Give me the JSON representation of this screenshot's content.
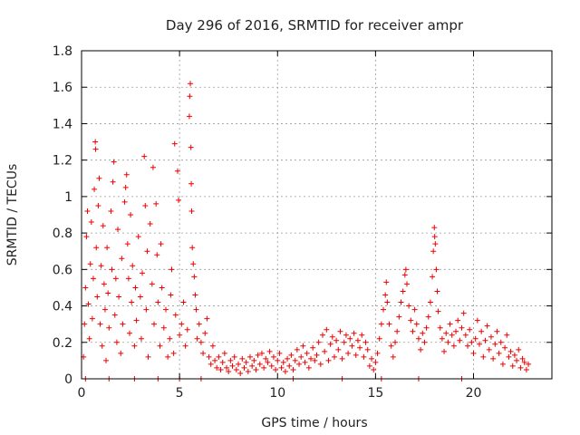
{
  "chart_data": {
    "type": "scatter",
    "title": "Day 296 of 2016, SRMTID for receiver ampr",
    "xlabel": "GPS time / hours",
    "ylabel": "SRMTID / TECUs",
    "xlim": [
      0,
      24
    ],
    "ylim": [
      0,
      1.8
    ],
    "grid": true,
    "marker": "+",
    "color": "#ee0000",
    "x_ticks": [
      0,
      5,
      10,
      15,
      20
    ],
    "x_tick_labels": [
      "0",
      "5",
      "10",
      "15",
      "20"
    ],
    "y_ticks": [
      0,
      0.2,
      0.4,
      0.6,
      0.8,
      1.0,
      1.2,
      1.4,
      1.6,
      1.8
    ],
    "y_tick_labels": [
      "0",
      "0.2",
      "0.4",
      "0.6",
      "0.8",
      "1",
      "1.2",
      "1.4",
      "1.6",
      "1.8"
    ],
    "series": [
      {
        "name": "SRMTID",
        "points": [
          [
            0.1,
            0.12
          ],
          [
            0.15,
            0.3
          ],
          [
            0.2,
            0.5
          ],
          [
            0.25,
            0.78
          ],
          [
            0.3,
            0.92
          ],
          [
            0.35,
            0.41
          ],
          [
            0.4,
            0.22
          ],
          [
            0.45,
            0.63
          ],
          [
            0.5,
            0.86
          ],
          [
            0.55,
            0.33
          ],
          [
            0.6,
            0.55
          ],
          [
            0.65,
            1.04
          ],
          [
            0.7,
            1.3
          ],
          [
            0.72,
            1.26
          ],
          [
            0.75,
            0.72
          ],
          [
            0.8,
            0.45
          ],
          [
            0.85,
            0.95
          ],
          [
            0.9,
            1.1
          ],
          [
            0.95,
            0.3
          ],
          [
            1.0,
            0.62
          ],
          [
            1.05,
            0.18
          ],
          [
            1.1,
            0.84
          ],
          [
            1.15,
            0.52
          ],
          [
            1.2,
            0.38
          ],
          [
            1.25,
            0.1
          ],
          [
            1.3,
            0.72
          ],
          [
            1.35,
            0.47
          ],
          [
            1.4,
            0.28
          ],
          [
            1.5,
            0.92
          ],
          [
            1.55,
            0.6
          ],
          [
            1.6,
            1.08
          ],
          [
            1.65,
            1.19
          ],
          [
            1.7,
            0.35
          ],
          [
            1.75,
            0.55
          ],
          [
            1.8,
            0.2
          ],
          [
            1.85,
            0.82
          ],
          [
            1.9,
            0.45
          ],
          [
            2.0,
            0.14
          ],
          [
            2.05,
            0.66
          ],
          [
            2.1,
            0.3
          ],
          [
            2.2,
            0.97
          ],
          [
            2.25,
            1.05
          ],
          [
            2.3,
            1.12
          ],
          [
            2.35,
            0.74
          ],
          [
            2.4,
            0.55
          ],
          [
            2.45,
            0.25
          ],
          [
            2.5,
            0.9
          ],
          [
            2.55,
            0.42
          ],
          [
            2.6,
            0.62
          ],
          [
            2.7,
            0.18
          ],
          [
            2.75,
            0.5
          ],
          [
            2.8,
            0.32
          ],
          [
            2.9,
            0.78
          ],
          [
            3.0,
            0.45
          ],
          [
            3.05,
            0.22
          ],
          [
            3.1,
            0.58
          ],
          [
            3.2,
            1.22
          ],
          [
            3.25,
            0.95
          ],
          [
            3.3,
            0.38
          ],
          [
            3.35,
            0.7
          ],
          [
            3.4,
            0.12
          ],
          [
            3.5,
            0.85
          ],
          [
            3.6,
            0.52
          ],
          [
            3.65,
            1.16
          ],
          [
            3.7,
            0.3
          ],
          [
            3.8,
            0.96
          ],
          [
            3.85,
            0.68
          ],
          [
            3.9,
            0.42
          ],
          [
            4.0,
            0.18
          ],
          [
            4.05,
            0.74
          ],
          [
            4.1,
            0.5
          ],
          [
            4.2,
            0.28
          ],
          [
            4.3,
            0.38
          ],
          [
            4.4,
            0.12
          ],
          [
            4.5,
            0.22
          ],
          [
            4.55,
            0.46
          ],
          [
            4.6,
            0.6
          ],
          [
            4.7,
            0.14
          ],
          [
            4.75,
            1.29
          ],
          [
            4.8,
            0.35
          ],
          [
            4.9,
            1.14
          ],
          [
            4.95,
            0.98
          ],
          [
            5.0,
            0.24
          ],
          [
            5.1,
            0.3
          ],
          [
            5.2,
            0.42
          ],
          [
            5.3,
            0.18
          ],
          [
            5.4,
            0.27
          ],
          [
            5.5,
            1.44
          ],
          [
            5.52,
            1.55
          ],
          [
            5.55,
            1.62
          ],
          [
            5.58,
            1.27
          ],
          [
            5.6,
            1.07
          ],
          [
            5.62,
            0.92
          ],
          [
            5.65,
            0.72
          ],
          [
            5.7,
            0.63
          ],
          [
            5.75,
            0.56
          ],
          [
            5.8,
            0.46
          ],
          [
            5.85,
            0.38
          ],
          [
            5.9,
            0.22
          ],
          [
            6.0,
            0.3
          ],
          [
            6.1,
            0.2
          ],
          [
            6.2,
            0.14
          ],
          [
            6.3,
            0.25
          ],
          [
            6.4,
            0.33
          ],
          [
            6.5,
            0.12
          ],
          [
            6.6,
            0.08
          ],
          [
            6.7,
            0.18
          ],
          [
            6.8,
            0.1
          ],
          [
            6.9,
            0.06
          ],
          [
            7.0,
            0.12
          ],
          [
            7.1,
            0.05
          ],
          [
            7.2,
            0.09
          ],
          [
            7.3,
            0.14
          ],
          [
            7.4,
            0.06
          ],
          [
            7.5,
            0.04
          ],
          [
            7.6,
            0.1
          ],
          [
            7.7,
            0.07
          ],
          [
            7.8,
            0.12
          ],
          [
            7.9,
            0.05
          ],
          [
            8.0,
            0.08
          ],
          [
            8.1,
            0.03
          ],
          [
            8.2,
            0.11
          ],
          [
            8.3,
            0.06
          ],
          [
            8.4,
            0.09
          ],
          [
            8.5,
            0.04
          ],
          [
            8.6,
            0.12
          ],
          [
            8.7,
            0.07
          ],
          [
            8.8,
            0.1
          ],
          [
            8.9,
            0.05
          ],
          [
            9.0,
            0.13
          ],
          [
            9.1,
            0.08
          ],
          [
            9.2,
            0.14
          ],
          [
            9.3,
            0.06
          ],
          [
            9.4,
            0.11
          ],
          [
            9.5,
            0.09
          ],
          [
            9.6,
            0.15
          ],
          [
            9.7,
            0.07
          ],
          [
            9.8,
            0.12
          ],
          [
            9.9,
            0.05
          ],
          [
            10.0,
            0.1
          ],
          [
            10.1,
            0.14
          ],
          [
            10.2,
            0.06
          ],
          [
            10.3,
            0.09
          ],
          [
            10.4,
            0.04
          ],
          [
            10.5,
            0.11
          ],
          [
            10.6,
            0.07
          ],
          [
            10.7,
            0.13
          ],
          [
            10.8,
            0.05
          ],
          [
            10.9,
            0.1
          ],
          [
            11.0,
            0.16
          ],
          [
            11.1,
            0.08
          ],
          [
            11.2,
            0.12
          ],
          [
            11.3,
            0.18
          ],
          [
            11.4,
            0.09
          ],
          [
            11.5,
            0.14
          ],
          [
            11.6,
            0.06
          ],
          [
            11.7,
            0.11
          ],
          [
            11.8,
            0.17
          ],
          [
            11.9,
            0.1
          ],
          [
            12.0,
            0.13
          ],
          [
            12.1,
            0.2
          ],
          [
            12.2,
            0.08
          ],
          [
            12.3,
            0.24
          ],
          [
            12.4,
            0.15
          ],
          [
            12.5,
            0.27
          ],
          [
            12.6,
            0.1
          ],
          [
            12.7,
            0.19
          ],
          [
            12.8,
            0.23
          ],
          [
            12.9,
            0.12
          ],
          [
            13.0,
            0.21
          ],
          [
            13.1,
            0.16
          ],
          [
            13.2,
            0.26
          ],
          [
            13.3,
            0.11
          ],
          [
            13.4,
            0.2
          ],
          [
            13.5,
            0.24
          ],
          [
            13.6,
            0.14
          ],
          [
            13.7,
            0.22
          ],
          [
            13.8,
            0.18
          ],
          [
            13.9,
            0.25
          ],
          [
            14.0,
            0.13
          ],
          [
            14.1,
            0.21
          ],
          [
            14.2,
            0.17
          ],
          [
            14.3,
            0.24
          ],
          [
            14.4,
            0.12
          ],
          [
            14.5,
            0.2
          ],
          [
            14.6,
            0.16
          ],
          [
            14.7,
            0.07
          ],
          [
            14.8,
            0.11
          ],
          [
            14.9,
            0.05
          ],
          [
            15.0,
            0.09
          ],
          [
            15.1,
            0.14
          ],
          [
            15.2,
            0.22
          ],
          [
            15.3,
            0.3
          ],
          [
            15.4,
            0.38
          ],
          [
            15.5,
            0.46
          ],
          [
            15.55,
            0.53
          ],
          [
            15.6,
            0.42
          ],
          [
            15.7,
            0.3
          ],
          [
            15.8,
            0.18
          ],
          [
            15.9,
            0.12
          ],
          [
            16.0,
            0.2
          ],
          [
            16.1,
            0.26
          ],
          [
            16.2,
            0.34
          ],
          [
            16.3,
            0.42
          ],
          [
            16.4,
            0.48
          ],
          [
            16.5,
            0.57
          ],
          [
            16.55,
            0.6
          ],
          [
            16.6,
            0.52
          ],
          [
            16.7,
            0.4
          ],
          [
            16.8,
            0.32
          ],
          [
            16.9,
            0.26
          ],
          [
            17.0,
            0.38
          ],
          [
            17.1,
            0.3
          ],
          [
            17.2,
            0.22
          ],
          [
            17.3,
            0.16
          ],
          [
            17.4,
            0.25
          ],
          [
            17.5,
            0.2
          ],
          [
            17.6,
            0.28
          ],
          [
            17.7,
            0.34
          ],
          [
            17.8,
            0.42
          ],
          [
            17.9,
            0.56
          ],
          [
            17.95,
            0.7
          ],
          [
            18.0,
            0.83
          ],
          [
            18.02,
            0.78
          ],
          [
            18.05,
            0.74
          ],
          [
            18.1,
            0.6
          ],
          [
            18.15,
            0.48
          ],
          [
            18.2,
            0.37
          ],
          [
            18.3,
            0.28
          ],
          [
            18.4,
            0.22
          ],
          [
            18.5,
            0.15
          ],
          [
            18.6,
            0.25
          ],
          [
            18.7,
            0.2
          ],
          [
            18.8,
            0.3
          ],
          [
            18.9,
            0.24
          ],
          [
            19.0,
            0.18
          ],
          [
            19.1,
            0.26
          ],
          [
            19.2,
            0.32
          ],
          [
            19.3,
            0.21
          ],
          [
            19.4,
            0.28
          ],
          [
            19.5,
            0.36
          ],
          [
            19.6,
            0.24
          ],
          [
            19.7,
            0.18
          ],
          [
            19.8,
            0.27
          ],
          [
            19.9,
            0.2
          ],
          [
            20.0,
            0.14
          ],
          [
            20.1,
            0.22
          ],
          [
            20.2,
            0.32
          ],
          [
            20.3,
            0.19
          ],
          [
            20.4,
            0.26
          ],
          [
            20.5,
            0.12
          ],
          [
            20.6,
            0.21
          ],
          [
            20.7,
            0.29
          ],
          [
            20.8,
            0.16
          ],
          [
            20.9,
            0.23
          ],
          [
            21.0,
            0.11
          ],
          [
            21.1,
            0.19
          ],
          [
            21.2,
            0.26
          ],
          [
            21.3,
            0.14
          ],
          [
            21.4,
            0.2
          ],
          [
            21.5,
            0.08
          ],
          [
            21.6,
            0.17
          ],
          [
            21.7,
            0.24
          ],
          [
            21.8,
            0.12
          ],
          [
            21.9,
            0.15
          ],
          [
            22.0,
            0.07
          ],
          [
            22.1,
            0.13
          ],
          [
            22.2,
            0.1
          ],
          [
            22.3,
            0.16
          ],
          [
            22.4,
            0.06
          ],
          [
            22.5,
            0.11
          ],
          [
            22.6,
            0.09
          ],
          [
            22.7,
            0.05
          ],
          [
            22.8,
            0.08
          ],
          [
            0.2,
            0.0
          ],
          [
            1.4,
            0.0
          ],
          [
            2.7,
            0.0
          ],
          [
            3.9,
            0.0
          ],
          [
            5.0,
            0.0
          ],
          [
            6.1,
            0.0
          ],
          [
            10.8,
            0.0
          ],
          [
            13.3,
            0.0
          ],
          [
            15.3,
            0.0
          ],
          [
            17.2,
            0.0
          ],
          [
            19.4,
            0.0
          ]
        ]
      }
    ]
  }
}
